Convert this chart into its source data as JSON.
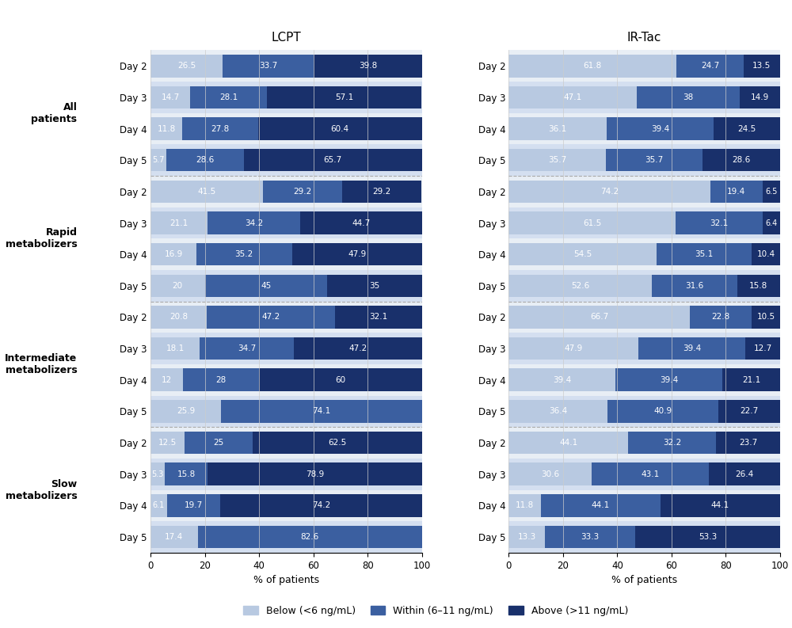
{
  "groups": [
    {
      "label": "All\npatients",
      "days": [
        "Day 2",
        "Day 3",
        "Day 4",
        "Day 5"
      ],
      "lcpt": {
        "below": [
          26.5,
          14.7,
          11.8,
          5.7
        ],
        "within": [
          33.7,
          28.1,
          27.8,
          28.6
        ],
        "above": [
          39.8,
          57.1,
          60.4,
          65.7
        ]
      },
      "irtac": {
        "below": [
          61.8,
          47.1,
          36.1,
          35.7
        ],
        "within": [
          24.7,
          38.0,
          39.4,
          35.7
        ],
        "above": [
          13.5,
          14.9,
          24.5,
          28.6
        ]
      }
    },
    {
      "label": "Rapid\nmetabolizers",
      "days": [
        "Day 2",
        "Day 3",
        "Day 4",
        "Day 5"
      ],
      "lcpt": {
        "below": [
          41.5,
          21.1,
          16.9,
          20.0
        ],
        "within": [
          29.2,
          34.2,
          35.2,
          45.0
        ],
        "above": [
          29.2,
          44.7,
          47.9,
          35.0
        ]
      },
      "irtac": {
        "below": [
          74.2,
          61.5,
          54.5,
          52.6
        ],
        "within": [
          19.4,
          32.1,
          35.1,
          31.6
        ],
        "above": [
          6.5,
          6.4,
          10.4,
          15.8
        ]
      }
    },
    {
      "label": "Intermediate\nmetabolizers",
      "days": [
        "Day 2",
        "Day 3",
        "Day 4",
        "Day 5"
      ],
      "lcpt": {
        "below": [
          20.8,
          18.1,
          12.0,
          25.9
        ],
        "within": [
          47.2,
          34.7,
          28.0,
          74.1
        ],
        "above": [
          32.1,
          47.2,
          60.0,
          0.0
        ]
      },
      "irtac": {
        "below": [
          66.7,
          47.9,
          39.4,
          36.4
        ],
        "within": [
          22.8,
          39.4,
          39.4,
          40.9
        ],
        "above": [
          10.5,
          12.7,
          21.1,
          22.7
        ]
      }
    },
    {
      "label": "Slow\nmetabolizers",
      "days": [
        "Day 2",
        "Day 3",
        "Day 4",
        "Day 5"
      ],
      "lcpt": {
        "below": [
          12.5,
          5.3,
          6.1,
          17.4
        ],
        "within": [
          25.0,
          15.8,
          19.7,
          82.6
        ],
        "above": [
          62.5,
          78.9,
          74.2,
          0.0
        ]
      },
      "irtac": {
        "below": [
          44.1,
          30.6,
          11.8,
          13.3
        ],
        "within": [
          32.2,
          43.1,
          44.1,
          33.3
        ],
        "above": [
          23.7,
          26.4,
          44.1,
          53.3
        ]
      }
    }
  ],
  "color_below": "#b8c9e1",
  "color_within": "#3b5fa0",
  "color_above": "#19306b",
  "color_row_light": "#dce6f1",
  "color_row_dark": "#c5d5e8",
  "lcpt_title": "LCPT",
  "irtac_title": "IR-Tac",
  "xlabel": "% of patients",
  "legend_below": "Below (<6 ng/mL)",
  "legend_within": "Within (6–11 ng/mL)",
  "legend_above": "Above (>11 ng/mL)",
  "xlim": [
    0,
    100
  ],
  "bar_height": 0.72,
  "group_label_fontsize": 9,
  "day_label_fontsize": 8.5,
  "bar_text_fontsize": 7.5,
  "title_fontsize": 11,
  "xlabel_fontsize": 9,
  "legend_fontsize": 9,
  "background_color": "#ffffff",
  "separator_color": "#aaaaaa",
  "grid_color": "#cccccc"
}
